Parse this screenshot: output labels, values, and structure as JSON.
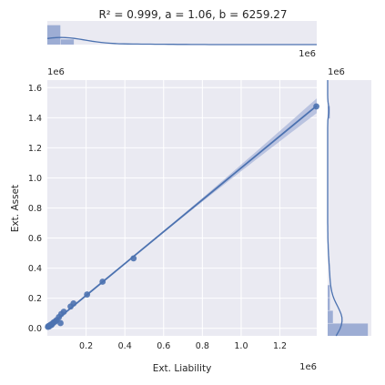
{
  "chart_data": {
    "type": "scatter",
    "title": "R² = 0.999, a = 1.06, b = 6259.27",
    "xlabel": "Ext. Liability",
    "ylabel": "Ext. Asset",
    "x_offset_label": "1e6",
    "y_offset_label": "1e6",
    "top_marginal_offset_label": "1e6",
    "right_marginal_offset_label": "1e6",
    "xlim": [
      0,
      1.39
    ],
    "ylim": [
      -0.05,
      1.65
    ],
    "x_ticks": [
      0.2,
      0.4,
      0.6,
      0.8,
      1.0,
      1.2
    ],
    "x_tick_labels": [
      "0.2",
      "0.4",
      "0.6",
      "0.8",
      "1.0",
      "1.2"
    ],
    "y_ticks": [
      0.0,
      0.2,
      0.4,
      0.6,
      0.8,
      1.0,
      1.2,
      1.4,
      1.6
    ],
    "y_tick_labels": [
      "0.0",
      "0.2",
      "0.4",
      "0.6",
      "0.8",
      "1.0",
      "1.2",
      "1.4",
      "1.6"
    ],
    "points": [
      {
        "x": 0.003,
        "y": 0.01
      },
      {
        "x": 0.006,
        "y": 0.015
      },
      {
        "x": 0.009,
        "y": 0.012
      },
      {
        "x": 0.012,
        "y": 0.018
      },
      {
        "x": 0.015,
        "y": 0.02
      },
      {
        "x": 0.018,
        "y": 0.025
      },
      {
        "x": 0.021,
        "y": 0.022
      },
      {
        "x": 0.024,
        "y": 0.028
      },
      {
        "x": 0.028,
        "y": 0.033
      },
      {
        "x": 0.033,
        "y": 0.04
      },
      {
        "x": 0.04,
        "y": 0.045
      },
      {
        "x": 0.048,
        "y": 0.055
      },
      {
        "x": 0.06,
        "y": 0.075
      },
      {
        "x": 0.068,
        "y": 0.035
      },
      {
        "x": 0.072,
        "y": 0.095
      },
      {
        "x": 0.085,
        "y": 0.11
      },
      {
        "x": 0.12,
        "y": 0.145
      },
      {
        "x": 0.135,
        "y": 0.165
      },
      {
        "x": 0.205,
        "y": 0.225
      },
      {
        "x": 0.285,
        "y": 0.31
      },
      {
        "x": 0.445,
        "y": 0.465
      },
      {
        "x": 1.388,
        "y": 1.475
      }
    ],
    "fit": {
      "slope": 1.06,
      "intercept": 0.00626
    },
    "x_hist": [
      0.82,
      0.22,
      0.0,
      0.0,
      0.0,
      0.0,
      0.0,
      0.0,
      0.0,
      0.0,
      0.0,
      0.0,
      0.0,
      0.0,
      0.0,
      0.0,
      0.0,
      0.0,
      0.0,
      0.0
    ],
    "y_hist": [
      0.92,
      0.12,
      0.05,
      0.05,
      0.0,
      0.0,
      0.0,
      0.0,
      0.0,
      0.0,
      0.0,
      0.0,
      0.0,
      0.0,
      0.0,
      0.0,
      0.0,
      0.05,
      0.0,
      0.0
    ],
    "colors": {
      "background": "#eaeaf2",
      "grid": "#ffffff",
      "points": "#4c72b0",
      "line": "#4c72b0",
      "band": "#a9b6d9",
      "hist": "#8fa2cf"
    }
  }
}
